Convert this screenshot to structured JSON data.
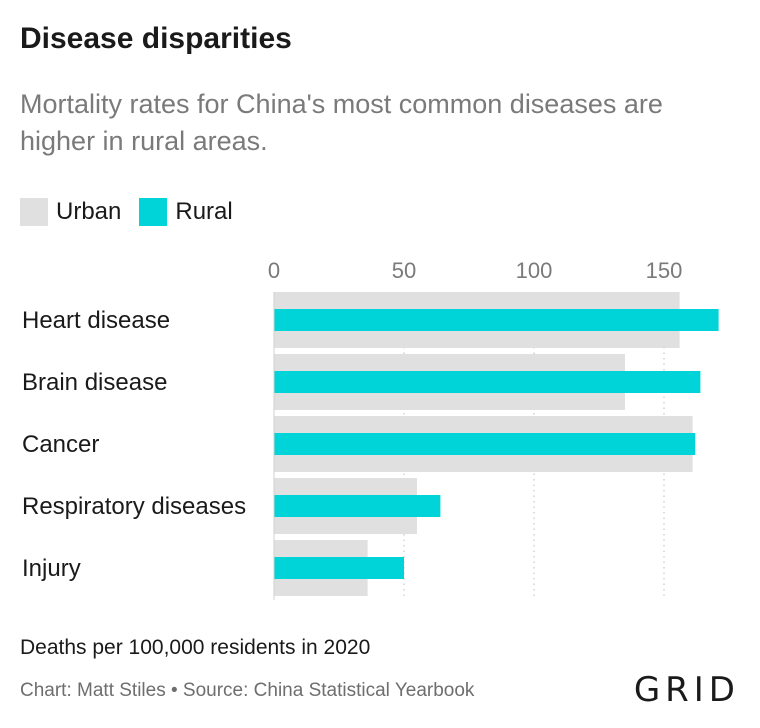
{
  "title": "Disease disparities",
  "subtitle": "Mortality rates for China's most common diseases are higher in rural areas.",
  "legend": [
    {
      "label": "Urban",
      "color": "#e0e0e0"
    },
    {
      "label": "Rural",
      "color": "#00d4d8"
    }
  ],
  "units_note": "Deaths per 100,000 residents in 2020",
  "source": "Chart: Matt Stiles • Source: China Statistical Yearbook",
  "logo_text": "GRID",
  "chart_data": {
    "type": "bar",
    "orientation": "horizontal",
    "categories": [
      "Heart disease",
      "Brain disease",
      "Cancer",
      "Respiratory diseases",
      "Injury"
    ],
    "series": [
      {
        "name": "Urban",
        "color": "#e0e0e0",
        "values": [
          156,
          135,
          161,
          55,
          36
        ]
      },
      {
        "name": "Rural",
        "color": "#00d4d8",
        "values": [
          171,
          164,
          162,
          64,
          50
        ]
      }
    ],
    "x_ticks": [
      0,
      50,
      100,
      150
    ],
    "xlim": [
      0,
      175
    ],
    "grid": "vertical dotted",
    "legend_position": "top-left"
  }
}
